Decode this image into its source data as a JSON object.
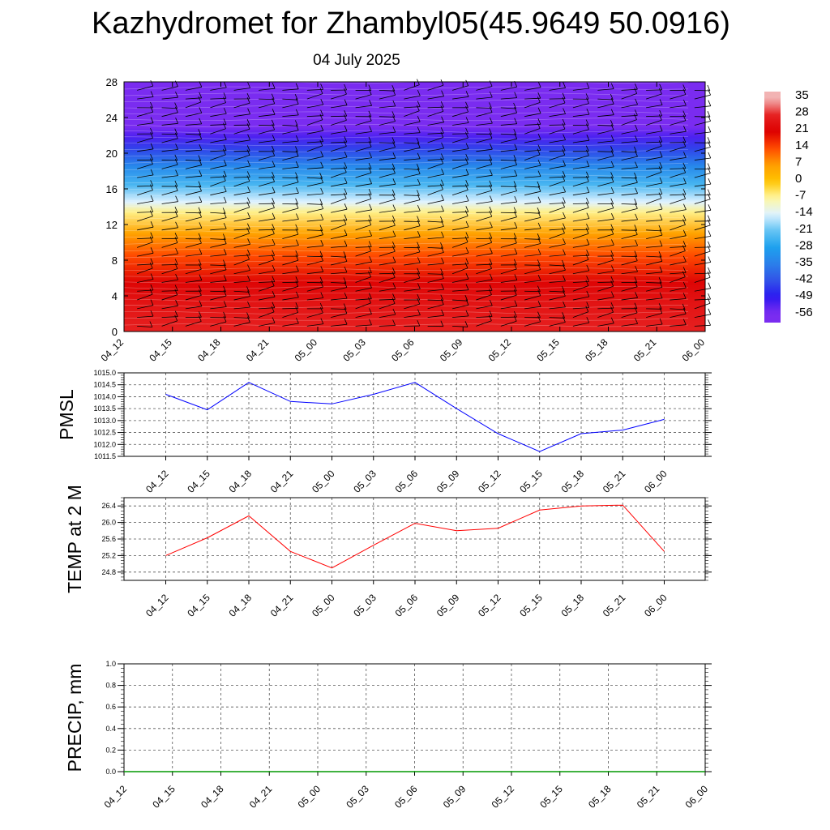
{
  "header": {
    "title": "Kazhydromet for Zhambyl05(45.9649 50.0916)",
    "date": "04 July 2025"
  },
  "chart_data": [
    {
      "type": "heatmap",
      "title": "Kazhydromet for Zhambyl05(45.9649 50.0916)",
      "subtitle": "04 July 2025",
      "x_ticks": [
        "04_12",
        "04_15",
        "04_18",
        "04_21",
        "05_00",
        "05_03",
        "05_06",
        "05_09",
        "05_12",
        "05_15",
        "05_18",
        "05_21",
        "06_00"
      ],
      "y_ticks": [
        0,
        4,
        8,
        12,
        16,
        20,
        24,
        28
      ],
      "ylim": [
        0,
        28
      ],
      "colorbar_labels": [
        "35",
        "28",
        "21",
        "14",
        "7",
        "0",
        "-7",
        "-14",
        "-21",
        "-28",
        "-35",
        "-42",
        "-49",
        "-56"
      ],
      "color_stops": [
        {
          "value": 35,
          "color": "#f2b3b3"
        },
        {
          "value": 28,
          "color": "#e62020"
        },
        {
          "value": 21,
          "color": "#dd0000"
        },
        {
          "value": 14,
          "color": "#ff4a00"
        },
        {
          "value": 7,
          "color": "#ff9d00"
        },
        {
          "value": 0,
          "color": "#ffc400"
        },
        {
          "value": -7,
          "color": "#fff7a0"
        },
        {
          "value": -14,
          "color": "#e0f3ff"
        },
        {
          "value": -21,
          "color": "#64c4f4"
        },
        {
          "value": -28,
          "color": "#1ea1ee"
        },
        {
          "value": -35,
          "color": "#2a80ea"
        },
        {
          "value": -42,
          "color": "#3254e8"
        },
        {
          "value": -49,
          "color": "#2a18f0"
        },
        {
          "value": -56,
          "color": "#7a2cf0"
        }
      ],
      "height_profile": [
        {
          "y": 0,
          "value": 28
        },
        {
          "y": 3.5,
          "value": 25
        },
        {
          "y": 5.5,
          "value": 22
        },
        {
          "y": 8.5,
          "value": 14
        },
        {
          "y": 11,
          "value": 6
        },
        {
          "y": 13.4,
          "value": -6
        },
        {
          "y": 14.5,
          "value": -14
        },
        {
          "y": 16.5,
          "value": -24
        },
        {
          "y": 18.5,
          "value": -33
        },
        {
          "y": 20.5,
          "value": -44
        },
        {
          "y": 21.8,
          "value": -52
        },
        {
          "y": 23,
          "value": -58
        },
        {
          "y": 28,
          "value": -60
        }
      ],
      "wind_barbs": true
    },
    {
      "type": "line",
      "ylabel": "PMSL",
      "ylim": [
        1011.5,
        1015.0
      ],
      "y_ticks": [
        "1011.5",
        "1012.0",
        "1012.5",
        "1013.0",
        "1013.5",
        "1014.0",
        "1014.5",
        "1015.0"
      ],
      "x_ticks": [
        "04_12",
        "04_15",
        "04_18",
        "04_21",
        "05_00",
        "05_03",
        "05_06",
        "05_09",
        "05_12",
        "05_15",
        "05_18",
        "05_21",
        "06_00"
      ],
      "series": [
        {
          "color": "#0000ff",
          "values": [
            1014.1,
            1013.45,
            1014.6,
            1013.8,
            1013.7,
            1014.1,
            1014.6,
            1013.5,
            1012.45,
            1011.7,
            1012.45,
            1012.6,
            1013.05
          ]
        }
      ],
      "grid": true
    },
    {
      "type": "line",
      "ylabel": "TEMP at 2 M",
      "ylim": [
        24.6,
        26.6
      ],
      "y_ticks": [
        "24.8",
        "25.2",
        "25.6",
        "26.0",
        "26.4"
      ],
      "x_ticks": [
        "04_12",
        "04_15",
        "04_18",
        "04_21",
        "05_00",
        "05_03",
        "05_06",
        "05_09",
        "05_12",
        "05_15",
        "05_18",
        "05_21",
        "06_00"
      ],
      "series": [
        {
          "color": "#ff0000",
          "values": [
            25.2,
            25.63,
            26.16,
            25.3,
            24.9,
            25.45,
            25.98,
            25.8,
            25.86,
            26.3,
            26.4,
            26.42,
            25.3
          ]
        }
      ],
      "grid": true
    },
    {
      "type": "line",
      "ylabel": "PRECIP, mm",
      "ylim": [
        0.0,
        1.0
      ],
      "y_ticks": [
        "0.0",
        "0.2",
        "0.4",
        "0.6",
        "0.8",
        "1.0"
      ],
      "x_ticks": [
        "04_12",
        "04_15",
        "04_18",
        "04_21",
        "05_00",
        "05_03",
        "05_06",
        "05_09",
        "05_12",
        "05_15",
        "05_18",
        "05_21",
        "06_00"
      ],
      "series": [
        {
          "color": "#009900",
          "values": [
            0,
            0,
            0,
            0,
            0,
            0,
            0,
            0,
            0,
            0,
            0,
            0,
            0
          ]
        }
      ],
      "grid": true
    }
  ]
}
